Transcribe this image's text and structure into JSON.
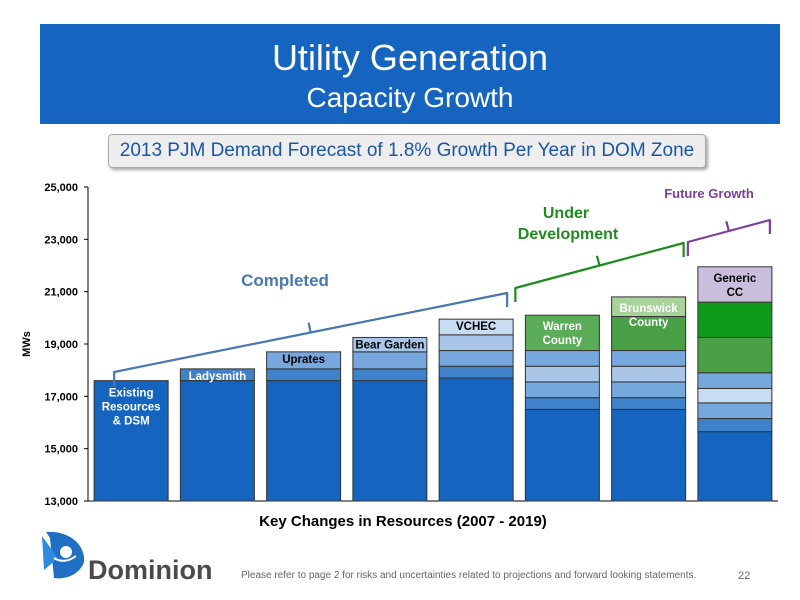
{
  "banner": {
    "title": "Utility Generation",
    "subtitle": "Capacity Growth"
  },
  "forecast_text": "2013 PJM Demand Forecast of 1.8% Growth Per Year in DOM Zone",
  "footer": {
    "logo_text": "Dominion",
    "note": "Please refer to page 2 for risks and uncertainties related to projections and forward looking statements.",
    "page_number": "22"
  },
  "chart_data": {
    "type": "bar",
    "stacked": true,
    "xlabel": "Key Changes in Resources (2007 - 2019)",
    "ylabel": "MWs",
    "ylim": [
      13000,
      25000
    ],
    "yticks": [
      "13,000",
      "15,000",
      "17,000",
      "19,000",
      "21,000",
      "23,000",
      "25,000"
    ],
    "yticks_values": [
      13000,
      15000,
      17000,
      19000,
      21000,
      23000,
      25000
    ],
    "bars": [
      {
        "label": "Existing Resources & DSM",
        "label_inside": true,
        "label_color": "#ffffff",
        "segments": [
          {
            "to": 17600,
            "color": "#1565c0"
          }
        ]
      },
      {
        "label": "Ladysmith",
        "label_inside": true,
        "label_color": "#ffffff",
        "segments": [
          {
            "to": 17600,
            "color": "#1565c0"
          },
          {
            "to": 18050,
            "color": "#3f82c9"
          }
        ]
      },
      {
        "label": "Uprates",
        "label_inside": true,
        "label_color": "#000000",
        "segments": [
          {
            "to": 17600,
            "color": "#1565c0"
          },
          {
            "to": 18050,
            "color": "#3f82c9"
          },
          {
            "to": 18700,
            "color": "#76a7dd"
          }
        ]
      },
      {
        "label": "Bear Garden",
        "label_inside": true,
        "label_color": "#000000",
        "segments": [
          {
            "to": 17600,
            "color": "#1565c0"
          },
          {
            "to": 18050,
            "color": "#3f82c9"
          },
          {
            "to": 18700,
            "color": "#76a7dd"
          },
          {
            "to": 19250,
            "color": "#a9c6e8"
          }
        ]
      },
      {
        "label": "VCHEC",
        "label_inside": true,
        "label_color": "#000000",
        "segments": [
          {
            "to": 17700,
            "color": "#1565c0"
          },
          {
            "to": 18150,
            "color": "#3f82c9"
          },
          {
            "to": 18750,
            "color": "#76a7dd"
          },
          {
            "to": 19350,
            "color": "#a9c6e8"
          },
          {
            "to": 19950,
            "color": "#c8dcf2"
          }
        ]
      },
      {
        "label": "Warren County",
        "label_inside": true,
        "label_color": "#ffffff",
        "segments": [
          {
            "to": 16500,
            "color": "#1565c0"
          },
          {
            "to": 16950,
            "color": "#3f82c9"
          },
          {
            "to": 17550,
            "color": "#76a7dd"
          },
          {
            "to": 18150,
            "color": "#a9c6e8"
          },
          {
            "to": 18750,
            "color": "#76a7dd"
          },
          {
            "to": 20100,
            "color": "#5aac56"
          }
        ]
      },
      {
        "label": "Brunswick County",
        "label_inside": true,
        "label_color": "#ffffff",
        "segments": [
          {
            "to": 16500,
            "color": "#1565c0"
          },
          {
            "to": 16950,
            "color": "#3f82c9"
          },
          {
            "to": 17550,
            "color": "#76a7dd"
          },
          {
            "to": 18150,
            "color": "#a9c6e8"
          },
          {
            "to": 18750,
            "color": "#76a7dd"
          },
          {
            "to": 20050,
            "color": "#4aa046"
          },
          {
            "to": 20800,
            "color": "#a8d29a"
          }
        ]
      },
      {
        "label": "Generic CC",
        "label_inside": true,
        "label_color": "#000000",
        "segments": [
          {
            "to": 15650,
            "color": "#1565c0"
          },
          {
            "to": 16150,
            "color": "#3f82c9"
          },
          {
            "to": 16750,
            "color": "#76a7dd"
          },
          {
            "to": 17300,
            "color": "#c8dcf2"
          },
          {
            "to": 17900,
            "color": "#76a7dd"
          },
          {
            "to": 19250,
            "color": "#4aa046"
          },
          {
            "to": 20600,
            "color": "#0f9a1c"
          },
          {
            "to": 21950,
            "color": "#c9bfdc"
          }
        ]
      }
    ],
    "annotations": [
      {
        "text": "Completed",
        "color": "#4a78b0",
        "from_bar": 0,
        "to_bar": 4
      },
      {
        "text": "Under Development",
        "color": "#1e8c1e",
        "from_bar": 5,
        "to_bar": 6
      },
      {
        "text": "Future Growth",
        "color": "#7b3f9e",
        "from_bar": 7,
        "to_bar": 7
      }
    ],
    "colors": {
      "bar_border": "#333333",
      "axis": "#000000"
    }
  }
}
